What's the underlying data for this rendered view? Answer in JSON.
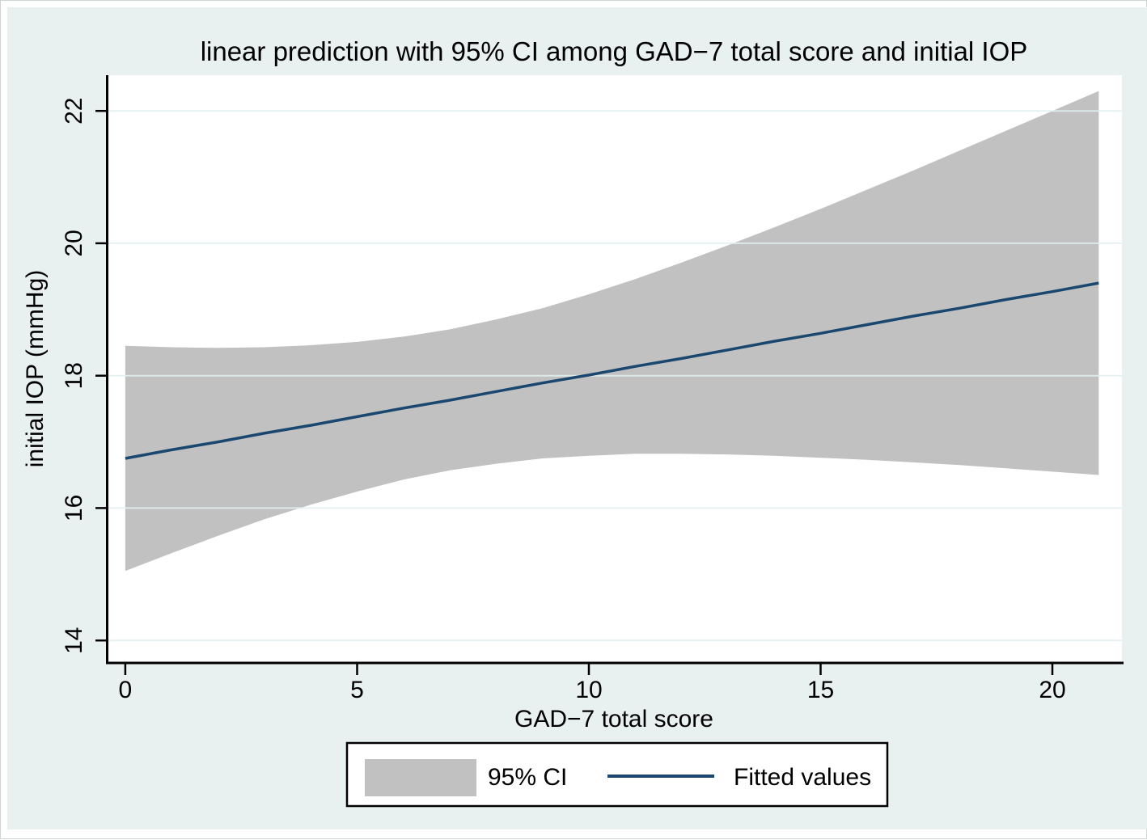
{
  "figure": {
    "title": "linear prediction with 95% CI among GAD−7 total score and initial IOP"
  },
  "chart_data": {
    "type": "line",
    "title": "linear prediction with 95% CI among GAD−7 total score and initial IOP",
    "xlabel": "GAD−7 total score",
    "ylabel": "initial IOP (mmHg)",
    "x_ticks": [
      0,
      5,
      10,
      15,
      20
    ],
    "y_ticks": [
      14,
      16,
      18,
      20,
      22
    ],
    "xlim": [
      -0.4,
      21.5
    ],
    "ylim": [
      13.66,
      22.54
    ],
    "grid": "horizontal",
    "legend_position": "bottom-center",
    "x": [
      0,
      1,
      2,
      3,
      4,
      5,
      6,
      7,
      8,
      9,
      10,
      11,
      12,
      13,
      14,
      15,
      16,
      17,
      18,
      19,
      20,
      21
    ],
    "series": [
      {
        "name": "Fitted values",
        "values": [
          16.75,
          16.88,
          17.0,
          17.13,
          17.25,
          17.38,
          17.51,
          17.63,
          17.76,
          17.89,
          18.01,
          18.14,
          18.26,
          18.39,
          18.52,
          18.64,
          18.77,
          18.9,
          19.02,
          19.15,
          19.27,
          19.4
        ]
      },
      {
        "name": "95% CI lower",
        "values": [
          15.05,
          15.32,
          15.58,
          15.83,
          16.05,
          16.25,
          16.43,
          16.57,
          16.67,
          16.75,
          16.79,
          16.82,
          16.82,
          16.81,
          16.79,
          16.76,
          16.73,
          16.69,
          16.65,
          16.6,
          16.55,
          16.5
        ]
      },
      {
        "name": "95% CI upper",
        "values": [
          18.45,
          18.43,
          18.42,
          18.43,
          18.46,
          18.51,
          18.59,
          18.7,
          18.85,
          19.02,
          19.23,
          19.46,
          19.71,
          19.97,
          20.24,
          20.52,
          20.81,
          21.1,
          21.4,
          21.7,
          22.0,
          22.3
        ]
      }
    ]
  },
  "legend": {
    "items": [
      {
        "label": "95% CI",
        "type": "area-swatch"
      },
      {
        "label": "Fitted values",
        "type": "line-sample"
      }
    ]
  },
  "colors": {
    "canvas_bg": "#e9f1f0",
    "plot_bg": "#ffffff",
    "ci_band": "#c1c1c1",
    "fitted_line": "#1a476f",
    "gridline": "#e3efef",
    "axis": "#000000",
    "legend_bg": "#ffffff",
    "legend_border": "#000000",
    "text": "#000000"
  }
}
